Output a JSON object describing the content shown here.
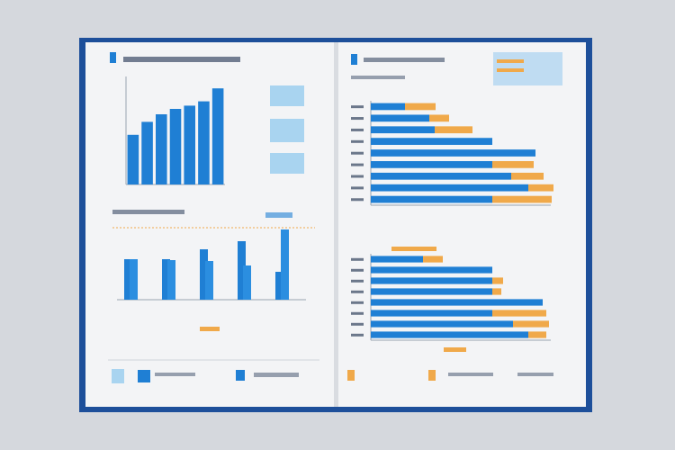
{
  "chart_data": [
    {
      "type": "bar",
      "color": "#1f7fd4",
      "ylim": [
        0,
        100
      ],
      "values": [
        46,
        58,
        65,
        70,
        73,
        77,
        89
      ]
    },
    {
      "type": "grouped-bar",
      "ylim": [
        0,
        100
      ],
      "series": [
        {
          "color": "#1f7fd4",
          "values": [
            45,
            45,
            56,
            65,
            31
          ]
        },
        {
          "color": "#2b8ee0",
          "values": [
            45,
            44,
            43,
            38,
            78
          ]
        }
      ]
    },
    {
      "type": "stacked-hbar",
      "xlim": [
        0,
        200
      ],
      "series": [
        {
          "color": "#1f7fd4",
          "values": [
            38,
            65,
            71,
            135,
            183,
            135,
            156,
            175,
            135
          ]
        },
        {
          "color": "#f0a94a",
          "values": [
            34,
            22,
            42,
            0,
            0,
            46,
            36,
            28,
            66
          ]
        }
      ]
    },
    {
      "type": "stacked-hbar",
      "xlim": [
        0,
        200
      ],
      "series": [
        {
          "color": "#1f7fd4",
          "values": [
            58,
            135,
            135,
            135,
            191,
            135,
            158,
            175
          ]
        },
        {
          "color": "#f0a94a",
          "values": [
            22,
            0,
            12,
            10,
            0,
            60,
            40,
            20
          ]
        }
      ]
    }
  ]
}
